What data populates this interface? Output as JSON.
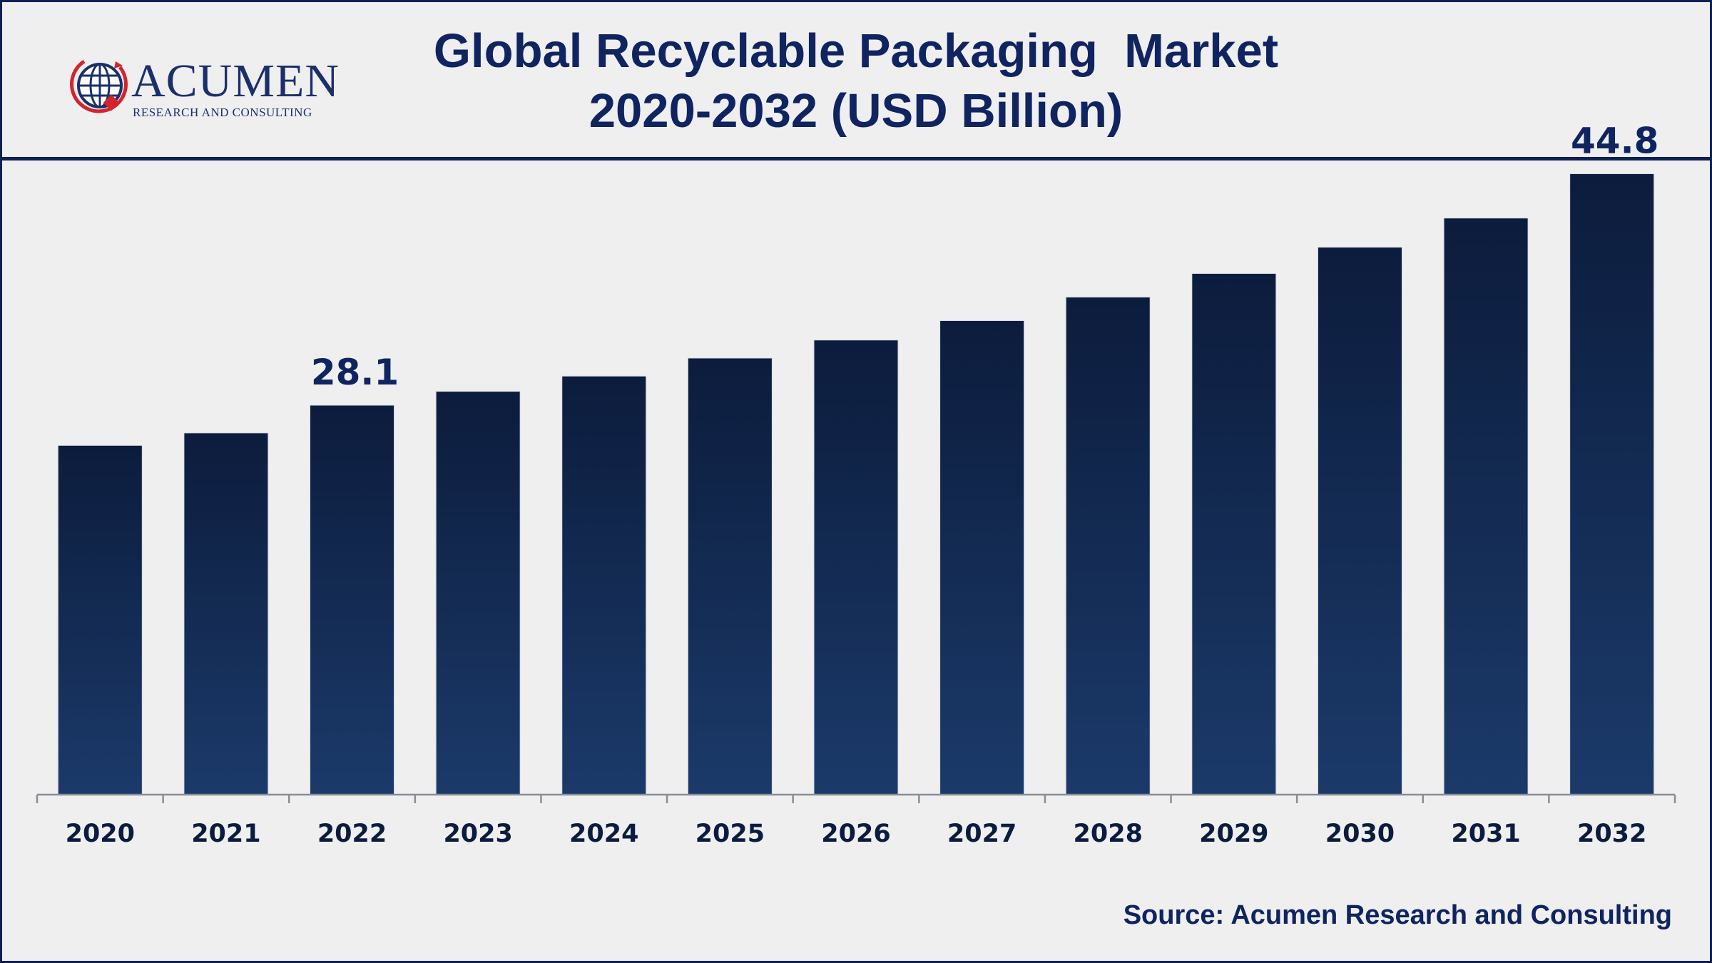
{
  "title": {
    "line1": "Global Recyclable Packaging  Market",
    "line2": "2020-2032 (USD Billion)"
  },
  "logo": {
    "name": "ACUMEN",
    "tagline": "RESEARCH AND CONSULTING"
  },
  "source": "Source: Acumen Research and Consulting",
  "colors": {
    "bar_top": "#0c1c3c",
    "bar_bottom": "#1b3a6a",
    "text": "#0f2460",
    "frame": "#0f2150",
    "background": "#efefef"
  },
  "chart_data": {
    "type": "bar",
    "title": "Global Recyclable Packaging  Market 2020-2032 (USD Billion)",
    "categories": [
      "2020",
      "2021",
      "2022",
      "2023",
      "2024",
      "2025",
      "2026",
      "2027",
      "2028",
      "2029",
      "2030",
      "2031",
      "2032"
    ],
    "values": [
      25.2,
      26.1,
      28.1,
      29.1,
      30.2,
      31.5,
      32.8,
      34.2,
      35.9,
      37.6,
      39.5,
      41.6,
      44.8
    ],
    "data_labels": [
      {
        "category": "2022",
        "text": "28.1"
      },
      {
        "category": "2032",
        "text": "44.8"
      }
    ],
    "ylim": [
      0,
      50
    ],
    "grid": false,
    "legend": "none"
  }
}
